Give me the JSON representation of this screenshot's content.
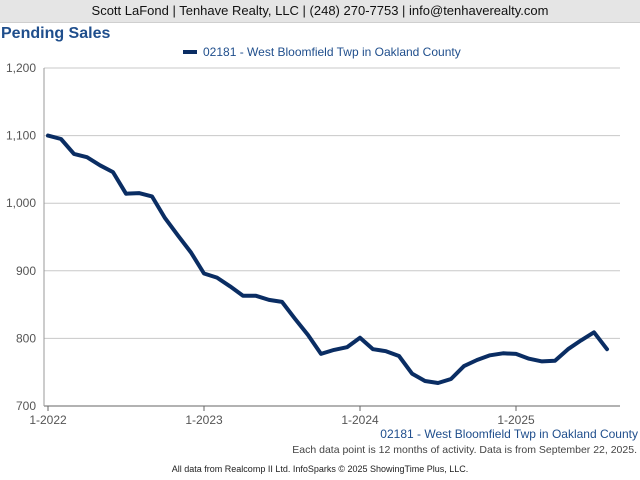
{
  "header": {
    "contact_line": "Scott LaFond | Tenhave Realty, LLC | (248) 270-7753 | info@tenhaverealty.com"
  },
  "chart_data": {
    "type": "line",
    "title": "Pending Sales",
    "xlabel": "",
    "ylabel": "",
    "ylim": [
      700,
      1200
    ],
    "yticks": [
      700,
      800,
      900,
      1000,
      1100,
      1200
    ],
    "ytick_labels": [
      "700",
      "800",
      "900",
      "1,000",
      "1,100",
      "1,200"
    ],
    "xticks": [
      {
        "label": "1-2022",
        "index": 0
      },
      {
        "label": "1-2023",
        "index": 12
      },
      {
        "label": "1-2024",
        "index": 24
      },
      {
        "label": "1-2025",
        "index": 36
      }
    ],
    "grid": true,
    "legend_position": "top",
    "series": [
      {
        "name": "02181 - West Bloomfield Twp in Oakland County",
        "color": "#0a2d63",
        "x": [
          "1-2022",
          "2-2022",
          "3-2022",
          "4-2022",
          "5-2022",
          "6-2022",
          "7-2022",
          "8-2022",
          "9-2022",
          "10-2022",
          "11-2022",
          "12-2022",
          "1-2023",
          "2-2023",
          "3-2023",
          "4-2023",
          "5-2023",
          "6-2023",
          "7-2023",
          "8-2023",
          "9-2023",
          "10-2023",
          "11-2023",
          "12-2023",
          "1-2024",
          "2-2024",
          "3-2024",
          "4-2024",
          "5-2024",
          "6-2024",
          "7-2024",
          "8-2024",
          "9-2024",
          "10-2024",
          "11-2024",
          "12-2024",
          "1-2025",
          "2-2025",
          "3-2025",
          "4-2025",
          "5-2025",
          "6-2025",
          "7-2025",
          "8-2025"
        ],
        "values": [
          1100,
          1095,
          1073,
          1068,
          1056,
          1046,
          1014,
          1015,
          1010,
          978,
          952,
          927,
          896,
          890,
          877,
          863,
          863,
          857,
          854,
          829,
          805,
          777,
          783,
          787,
          801,
          784,
          781,
          774,
          748,
          737,
          734,
          740,
          759,
          768,
          775,
          778,
          777,
          770,
          766,
          767,
          784,
          797,
          809,
          784
        ]
      }
    ]
  },
  "footer": {
    "series_label": "02181 - West Bloomfield Twp in Oakland County",
    "note": "Each data point is 12 months of activity. Data is from September 22, 2025.",
    "credits": "All data from Realcomp II Ltd. InfoSparks © 2025 ShowingTime Plus, LLC."
  }
}
